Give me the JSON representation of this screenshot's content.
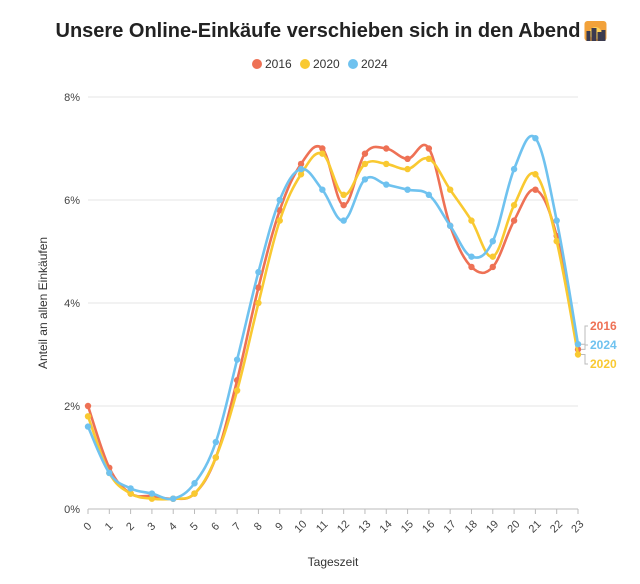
{
  "chart_data": {
    "type": "line",
    "title": "Unsere Online-Einkäufe verschieben sich in den Abend",
    "title_emoji": "city-sunset-icon",
    "xlabel": "Tageszeit",
    "ylabel": "Anteil an allen Einkäufen",
    "x": [
      "0",
      "1",
      "2",
      "3",
      "4",
      "5",
      "6",
      "7",
      "8",
      "9",
      "10",
      "11",
      "12",
      "13",
      "14",
      "15",
      "16",
      "17",
      "18",
      "19",
      "20",
      "21",
      "22",
      "23"
    ],
    "ylim": [
      0,
      8
    ],
    "yticks": [
      "0%",
      "2%",
      "4%",
      "6%",
      "8%"
    ],
    "grid": "horizontal",
    "legend_position": "top",
    "series": [
      {
        "name": "2016",
        "color": "#ee7155",
        "values": [
          2.0,
          0.8,
          0.3,
          0.25,
          0.2,
          0.3,
          1.0,
          2.5,
          4.3,
          5.8,
          6.7,
          7.0,
          5.9,
          6.9,
          7.0,
          6.8,
          7.0,
          5.5,
          4.7,
          4.7,
          5.6,
          6.2,
          5.3,
          3.1
        ]
      },
      {
        "name": "2020",
        "color": "#f9c931",
        "values": [
          1.8,
          0.7,
          0.3,
          0.2,
          0.2,
          0.3,
          1.0,
          2.3,
          4.0,
          5.6,
          6.5,
          6.9,
          6.1,
          6.7,
          6.7,
          6.6,
          6.8,
          6.2,
          5.6,
          4.9,
          5.9,
          6.5,
          5.2,
          3.0
        ]
      },
      {
        "name": "2024",
        "color": "#6fc2ef",
        "values": [
          1.6,
          0.7,
          0.4,
          0.3,
          0.2,
          0.5,
          1.3,
          2.9,
          4.6,
          6.0,
          6.6,
          6.2,
          5.6,
          6.4,
          6.3,
          6.2,
          6.1,
          5.5,
          4.9,
          5.2,
          6.6,
          7.2,
          5.6,
          3.2
        ]
      }
    ],
    "end_labels": [
      "2016",
      "2024",
      "2020"
    ]
  }
}
